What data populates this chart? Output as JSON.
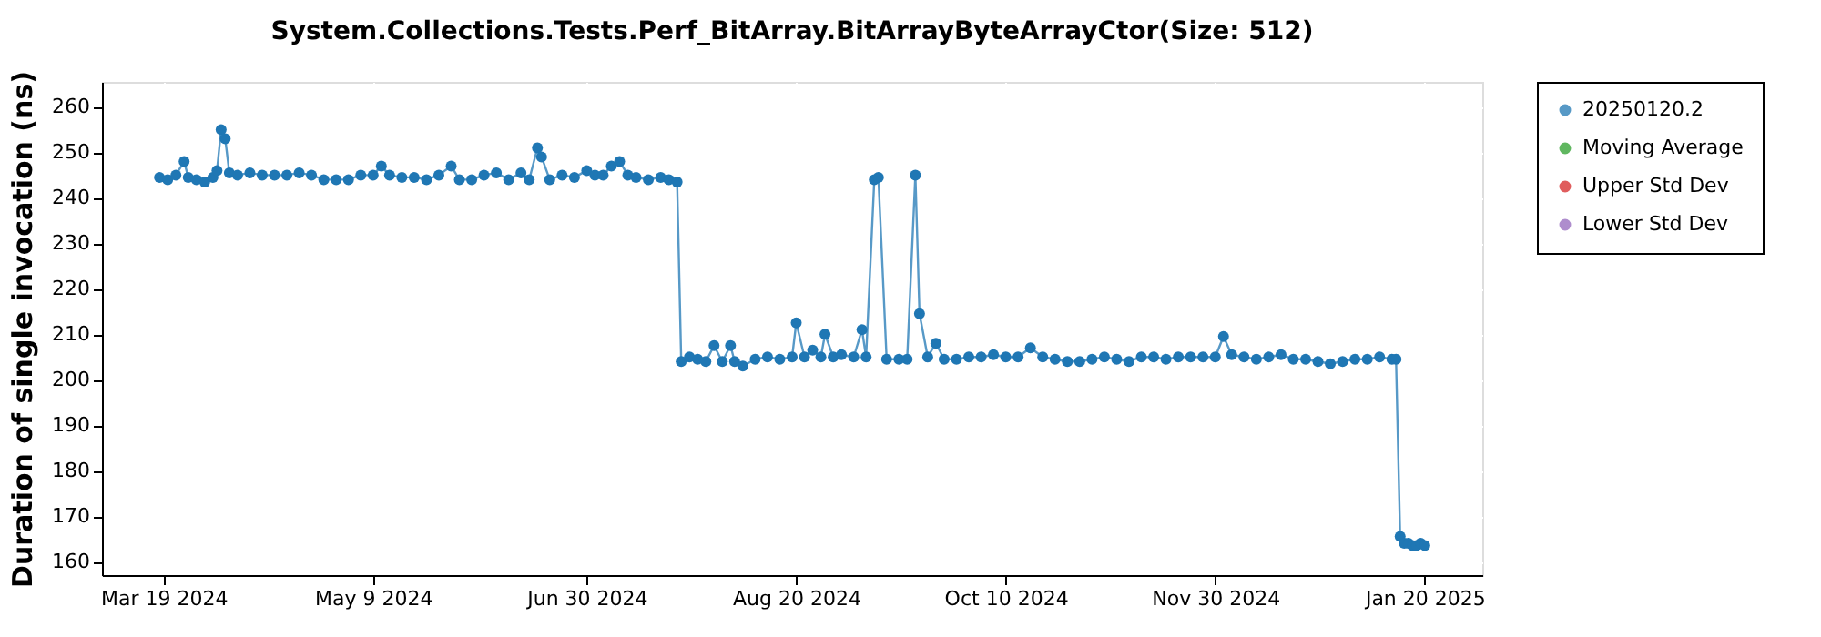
{
  "chart_data": {
    "type": "line",
    "title": "System.Collections.Tests.Perf_BitArray.BitArrayByteArrayCtor(Size: 512)",
    "ylabel": "Duration of single invocation (ns)",
    "xlim": [
      "2024-03-04",
      "2025-02-03"
    ],
    "ylim": [
      157,
      265.5
    ],
    "xticks": [
      {
        "value": "2024-03-19",
        "label": "Mar 19 2024"
      },
      {
        "value": "2024-05-09",
        "label": "May 9 2024"
      },
      {
        "value": "2024-06-30",
        "label": "Jun 30 2024"
      },
      {
        "value": "2024-08-20",
        "label": "Aug 20 2024"
      },
      {
        "value": "2024-10-10",
        "label": "Oct 10 2024"
      },
      {
        "value": "2024-11-30",
        "label": "Nov 30 2024"
      },
      {
        "value": "2025-01-20",
        "label": "Jan 20 2025"
      }
    ],
    "yticks": [
      160,
      170,
      180,
      190,
      200,
      210,
      220,
      230,
      240,
      250,
      260
    ],
    "grid": true,
    "legend": "right",
    "marker": "circle",
    "line_style": "solid",
    "x": [
      "2024-03-18",
      "2024-03-20",
      "2024-03-22",
      "2024-03-24",
      "2024-03-25",
      "2024-03-27",
      "2024-03-29",
      "2024-03-31",
      "2024-04-01",
      "2024-04-02",
      "2024-04-03",
      "2024-04-04",
      "2024-04-06",
      "2024-04-09",
      "2024-04-12",
      "2024-04-15",
      "2024-04-18",
      "2024-04-21",
      "2024-04-24",
      "2024-04-27",
      "2024-04-30",
      "2024-05-03",
      "2024-05-06",
      "2024-05-09",
      "2024-05-11",
      "2024-05-13",
      "2024-05-16",
      "2024-05-19",
      "2024-05-22",
      "2024-05-25",
      "2024-05-28",
      "2024-05-30",
      "2024-06-02",
      "2024-06-05",
      "2024-06-08",
      "2024-06-11",
      "2024-06-14",
      "2024-06-16",
      "2024-06-18",
      "2024-06-19",
      "2024-06-21",
      "2024-06-24",
      "2024-06-27",
      "2024-06-30",
      "2024-07-02",
      "2024-07-04",
      "2024-07-06",
      "2024-07-08",
      "2024-07-10",
      "2024-07-12",
      "2024-07-15",
      "2024-07-18",
      "2024-07-20",
      "2024-07-22",
      "2024-07-23",
      "2024-07-25",
      "2024-07-27",
      "2024-07-29",
      "2024-07-31",
      "2024-08-02",
      "2024-08-04",
      "2024-08-05",
      "2024-08-07",
      "2024-08-10",
      "2024-08-13",
      "2024-08-16",
      "2024-08-19",
      "2024-08-20",
      "2024-08-22",
      "2024-08-24",
      "2024-08-26",
      "2024-08-27",
      "2024-08-29",
      "2024-08-31",
      "2024-09-03",
      "2024-09-05",
      "2024-09-06",
      "2024-09-08",
      "2024-09-09",
      "2024-09-11",
      "2024-09-14",
      "2024-09-16",
      "2024-09-18",
      "2024-09-19",
      "2024-09-21",
      "2024-09-23",
      "2024-09-25",
      "2024-09-28",
      "2024-10-01",
      "2024-10-04",
      "2024-10-07",
      "2024-10-10",
      "2024-10-13",
      "2024-10-16",
      "2024-10-19",
      "2024-10-22",
      "2024-10-25",
      "2024-10-28",
      "2024-10-31",
      "2024-11-03",
      "2024-11-06",
      "2024-11-09",
      "2024-11-12",
      "2024-11-15",
      "2024-11-18",
      "2024-11-21",
      "2024-11-24",
      "2024-11-27",
      "2024-11-30",
      "2024-12-02",
      "2024-12-04",
      "2024-12-07",
      "2024-12-10",
      "2024-12-13",
      "2024-12-16",
      "2024-12-19",
      "2024-12-22",
      "2024-12-25",
      "2024-12-28",
      "2024-12-31",
      "2025-01-03",
      "2025-01-06",
      "2025-01-09",
      "2025-01-12",
      "2025-01-13",
      "2025-01-14",
      "2025-01-15",
      "2025-01-16",
      "2025-01-17",
      "2025-01-18",
      "2025-01-19",
      "2025-01-20"
    ],
    "series": [
      {
        "name": "20250120.2",
        "color": "#1f77b4",
        "values": [
          244.5,
          244,
          245,
          248,
          244.5,
          244,
          243.5,
          244.5,
          246,
          255,
          253,
          245.5,
          245,
          245.5,
          245,
          245,
          245,
          245.5,
          245,
          244,
          244,
          244,
          245,
          245,
          247,
          245,
          244.5,
          244.5,
          244,
          245,
          247,
          244,
          244,
          245,
          245.5,
          244,
          245.5,
          244,
          251,
          249,
          244,
          245,
          244.5,
          246,
          245,
          245,
          247,
          248,
          245,
          244.5,
          244,
          244.5,
          244,
          243.5,
          204,
          205,
          204.5,
          204,
          207.5,
          204,
          207.5,
          204,
          203,
          204.5,
          205,
          204.5,
          205,
          212.5,
          205,
          206.5,
          205,
          210,
          205,
          205.5,
          205,
          211,
          205,
          244,
          244.5,
          204.5,
          204.5,
          204.5,
          245,
          214.5,
          205,
          208,
          204.5,
          204.5,
          205,
          205,
          205.5,
          205,
          205,
          207,
          205,
          204.5,
          204,
          204,
          204.5,
          205,
          204.5,
          204,
          205,
          205,
          204.5,
          205,
          205,
          205,
          205,
          209.5,
          205.5,
          205,
          204.5,
          205,
          205.5,
          204.5,
          204.5,
          204,
          203.5,
          204,
          204.5,
          204.5,
          205,
          204.5,
          204.5,
          165.5,
          164,
          164,
          163.5,
          163.5,
          164,
          163.5
        ]
      },
      {
        "name": "Moving Average",
        "color": "#2ca02c",
        "values": [
          null,
          null,
          null,
          null,
          null,
          null,
          null,
          null,
          null,
          null,
          null,
          null,
          null,
          null,
          null,
          null,
          null,
          null,
          null,
          null,
          null,
          null,
          null,
          null,
          null,
          null,
          null,
          null,
          null,
          null,
          null,
          null,
          null,
          null,
          null,
          null,
          null,
          null,
          null,
          null,
          null,
          null,
          null,
          null,
          null,
          null,
          null,
          null,
          null,
          null,
          null,
          null,
          null,
          null,
          null,
          null,
          null,
          null,
          null,
          null,
          null,
          null,
          null,
          null,
          null,
          null,
          null,
          null,
          null,
          null,
          null,
          null,
          null,
          null,
          null,
          null,
          null,
          null,
          null,
          null,
          null,
          null,
          null,
          null,
          null,
          null,
          null,
          null,
          null,
          null,
          null,
          null,
          null,
          null,
          null,
          null,
          null,
          null,
          null,
          null,
          null,
          null,
          null,
          null,
          null,
          null,
          null,
          null,
          null,
          null,
          null,
          null,
          null,
          null,
          null,
          null,
          null,
          null,
          null,
          null,
          null,
          null,
          null,
          null,
          null,
          null,
          null,
          null,
          null,
          null,
          null,
          null
        ]
      },
      {
        "name": "Upper Std Dev",
        "color": "#d62728",
        "values": [
          null,
          null,
          null,
          null,
          null,
          null,
          null,
          null,
          null,
          null,
          null,
          null,
          null,
          null,
          null,
          null,
          null,
          null,
          null,
          null,
          null,
          null,
          null,
          null,
          null,
          null,
          null,
          null,
          null,
          null,
          null,
          null,
          null,
          null,
          null,
          null,
          null,
          null,
          null,
          null,
          null,
          null,
          null,
          null,
          null,
          null,
          null,
          null,
          null,
          null,
          null,
          null,
          null,
          null,
          null,
          null,
          null,
          null,
          null,
          null,
          null,
          null,
          null,
          null,
          null,
          null,
          null,
          null,
          null,
          null,
          null,
          null,
          null,
          null,
          null,
          null,
          null,
          null,
          null,
          null,
          null,
          null,
          null,
          null,
          null,
          null,
          null,
          null,
          null,
          null,
          null,
          null,
          null,
          null,
          null,
          null,
          null,
          null,
          null,
          null,
          null,
          null,
          null,
          null,
          null,
          null,
          null,
          null,
          null,
          null,
          null,
          null,
          null,
          null,
          null,
          null,
          null,
          null,
          null,
          null,
          null,
          null,
          null,
          null,
          null,
          null,
          null,
          null,
          null,
          null,
          null,
          null
        ]
      },
      {
        "name": "Lower Std Dev",
        "color": "#9467bd",
        "values": [
          null,
          null,
          null,
          null,
          null,
          null,
          null,
          null,
          null,
          null,
          null,
          null,
          null,
          null,
          null,
          null,
          null,
          null,
          null,
          null,
          null,
          null,
          null,
          null,
          null,
          null,
          null,
          null,
          null,
          null,
          null,
          null,
          null,
          null,
          null,
          null,
          null,
          null,
          null,
          null,
          null,
          null,
          null,
          null,
          null,
          null,
          null,
          null,
          null,
          null,
          null,
          null,
          null,
          null,
          null,
          null,
          null,
          null,
          null,
          null,
          null,
          null,
          null,
          null,
          null,
          null,
          null,
          null,
          null,
          null,
          null,
          null,
          null,
          null,
          null,
          null,
          null,
          null,
          null,
          null,
          null,
          null,
          null,
          null,
          null,
          null,
          null,
          null,
          null,
          null,
          null,
          null,
          null,
          null,
          null,
          null,
          null,
          null,
          null,
          null,
          null,
          null,
          null,
          null,
          null,
          null,
          null,
          null,
          null,
          null,
          null,
          null,
          null,
          null,
          null,
          null,
          null,
          null,
          null,
          null,
          null,
          null,
          null,
          null,
          null,
          null,
          null,
          null,
          null,
          null,
          null,
          null
        ]
      }
    ]
  }
}
